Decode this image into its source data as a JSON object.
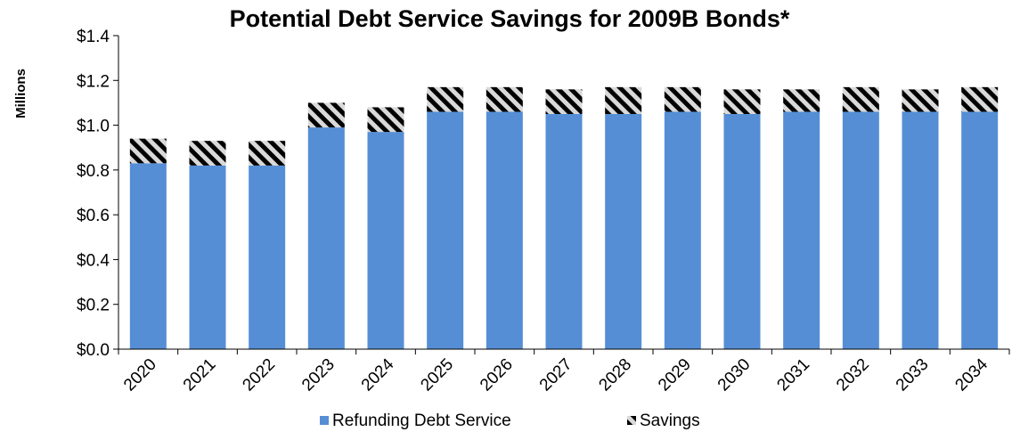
{
  "chart_data": {
    "type": "bar",
    "stacked": true,
    "title": "Potential Debt Service Savings for 2009B Bonds*",
    "ylabel": "Millions",
    "xlabel": "",
    "ylim": [
      0,
      1.4
    ],
    "yticks": [
      "$0.0",
      "$0.2",
      "$0.4",
      "$0.6",
      "$0.8",
      "$1.0",
      "$1.2",
      "$1.4"
    ],
    "ytick_values": [
      0,
      0.2,
      0.4,
      0.6,
      0.8,
      1.0,
      1.2,
      1.4
    ],
    "grid": false,
    "legend_position": "bottom",
    "categories": [
      "2020",
      "2021",
      "2022",
      "2023",
      "2024",
      "2025",
      "2026",
      "2027",
      "2028",
      "2029",
      "2030",
      "2031",
      "2032",
      "2033",
      "2034"
    ],
    "series": [
      {
        "name": "Refunding Debt Service",
        "color": "#558ED5",
        "pattern": "solid",
        "values": [
          0.83,
          0.82,
          0.82,
          0.99,
          0.97,
          1.06,
          1.06,
          1.05,
          1.05,
          1.06,
          1.05,
          1.06,
          1.06,
          1.06,
          1.06
        ]
      },
      {
        "name": "Savings",
        "color": "#000000",
        "pattern": "diagonal-stripes",
        "values": [
          0.11,
          0.11,
          0.11,
          0.11,
          0.11,
          0.11,
          0.11,
          0.11,
          0.12,
          0.11,
          0.11,
          0.1,
          0.11,
          0.1,
          0.11
        ]
      }
    ]
  }
}
